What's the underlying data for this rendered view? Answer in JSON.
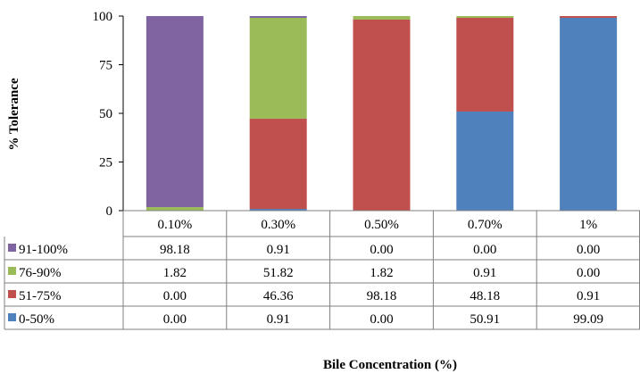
{
  "chart_data": {
    "type": "bar",
    "stacked": true,
    "title": "",
    "xlabel": "Bile Concentration (%)",
    "ylabel": "% Tolerance",
    "ylim": [
      0,
      100
    ],
    "yticks": [
      0,
      25,
      50,
      75,
      100
    ],
    "ytick_labels": [
      "0",
      "25",
      "50",
      "75",
      "100"
    ],
    "grid": false,
    "legend": "data-table-left",
    "categories": [
      "0.10%",
      "0.30%",
      "0.50%",
      "0.70%",
      "1%"
    ],
    "series": [
      {
        "name": "0-50%",
        "color": "#4f81bd",
        "values": [
          0.0,
          0.91,
          0.0,
          50.91,
          99.09
        ],
        "labels": [
          "0.00",
          "0.91",
          "0.00",
          "50.91",
          "99.09"
        ]
      },
      {
        "name": "51-75%",
        "color": "#c0504d",
        "values": [
          0.0,
          46.36,
          98.18,
          48.18,
          0.91
        ],
        "labels": [
          "0.00",
          "46.36",
          "98.18",
          "48.18",
          "0.91"
        ]
      },
      {
        "name": "76-90%",
        "color": "#9bbb59",
        "values": [
          1.82,
          51.82,
          1.82,
          0.91,
          0.0
        ],
        "labels": [
          "1.82",
          "51.82",
          "1.82",
          "0.91",
          "0.00"
        ]
      },
      {
        "name": "91-100%",
        "color": "#8064a2",
        "values": [
          98.18,
          0.91,
          0.0,
          0.0,
          0.0
        ],
        "labels": [
          "98.18",
          "0.91",
          "0.00",
          "0.00",
          "0.00"
        ]
      }
    ],
    "table_row_order": [
      "91-100%",
      "76-90%",
      "51-75%",
      "0-50%"
    ]
  }
}
